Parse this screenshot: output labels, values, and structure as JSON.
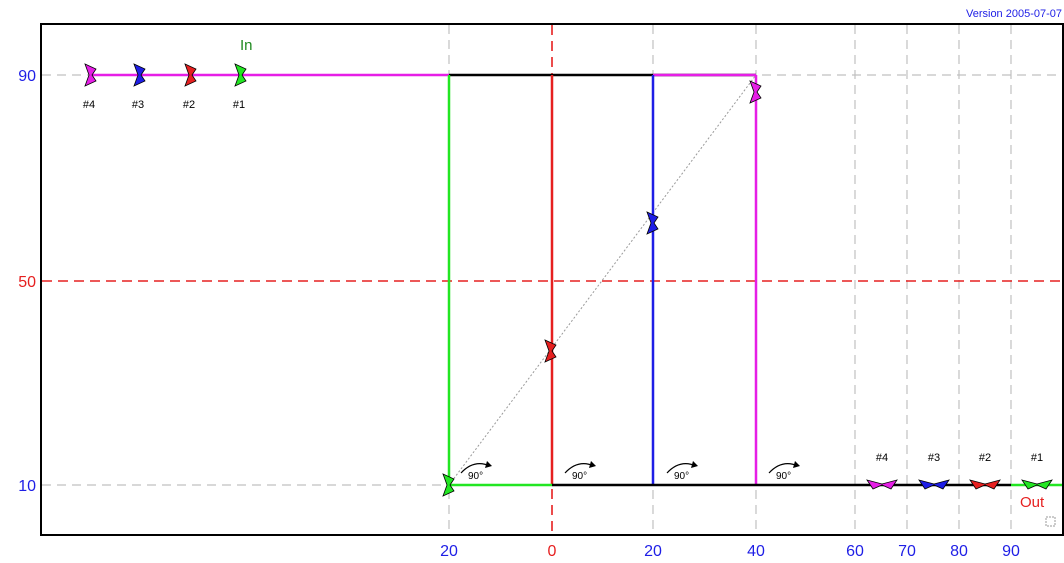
{
  "version_label": "Version 2005-07-07",
  "in_label": "In",
  "out_label": "Out",
  "angle_label": "90°",
  "y_ticks": [
    {
      "text": "90",
      "value": 90,
      "color": "#1e1ee6"
    },
    {
      "text": "50",
      "value": 50,
      "color": "#e62020"
    },
    {
      "text": "10",
      "value": 10,
      "color": "#1e1ee6"
    }
  ],
  "x_ticks": [
    {
      "text": "20",
      "color": "#1e1ee6"
    },
    {
      "text": "0",
      "color": "#e62020"
    },
    {
      "text": "20",
      "color": "#1e1ee6"
    },
    {
      "text": "40",
      "color": "#1e1ee6"
    },
    {
      "text": "60",
      "color": "#1e1ee6"
    },
    {
      "text": "70",
      "color": "#1e1ee6"
    },
    {
      "text": "80",
      "color": "#1e1ee6"
    },
    {
      "text": "90",
      "color": "#1e1ee6"
    }
  ],
  "tracks": [
    {
      "label": "#1",
      "color": "#22e622"
    },
    {
      "label": "#2",
      "color": "#e62020"
    },
    {
      "label": "#3",
      "color": "#1e1ee6"
    },
    {
      "label": "#4",
      "color": "#e61ee6"
    }
  ],
  "colors": {
    "frame": "#000000",
    "grid": "#c0c0c0",
    "center_line": "#e62020",
    "diagonal": "#9a9a9a",
    "version": "#1e1ee6",
    "in": "#208a20",
    "out": "#e62020"
  }
}
